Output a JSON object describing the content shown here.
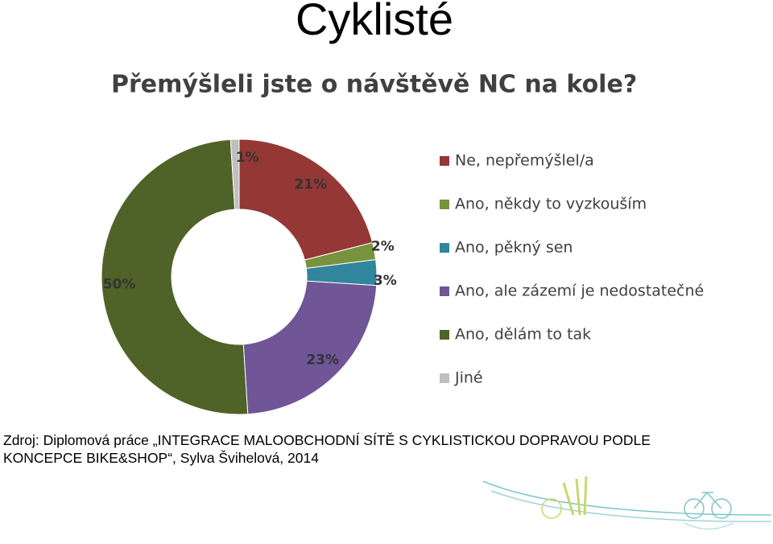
{
  "slide_title": "Cyklisté",
  "chart_data": {
    "type": "donut",
    "title": "Přemýšleli jste o návštěvě NC na kole?",
    "categories": [
      "Ne, nepřemýšlel/a",
      "Ano, někdy to vyzkouším",
      "Ano, pěkný sen",
      "Ano, ale zázemí je nedostatečné",
      "Ano, dělám to tak",
      "Jiné"
    ],
    "values": [
      21,
      2,
      3,
      23,
      50,
      1
    ],
    "value_labels": [
      "21%",
      "2%",
      "3%",
      "23%",
      "50%",
      "1%"
    ],
    "colors": [
      "#953735",
      "#77933c",
      "#31859c",
      "#705597",
      "#4f6228",
      "#bfbfbf"
    ],
    "legend": "right"
  },
  "source": "Zdroj: Diplomová práce „INTEGRACE MALOOBCHODNÍ SÍTĚ S CYKLISTICKOU DOPRAVOU PODLE KONCEPCE BIKE&SHOP“, Sylva Švihelová, 2014"
}
